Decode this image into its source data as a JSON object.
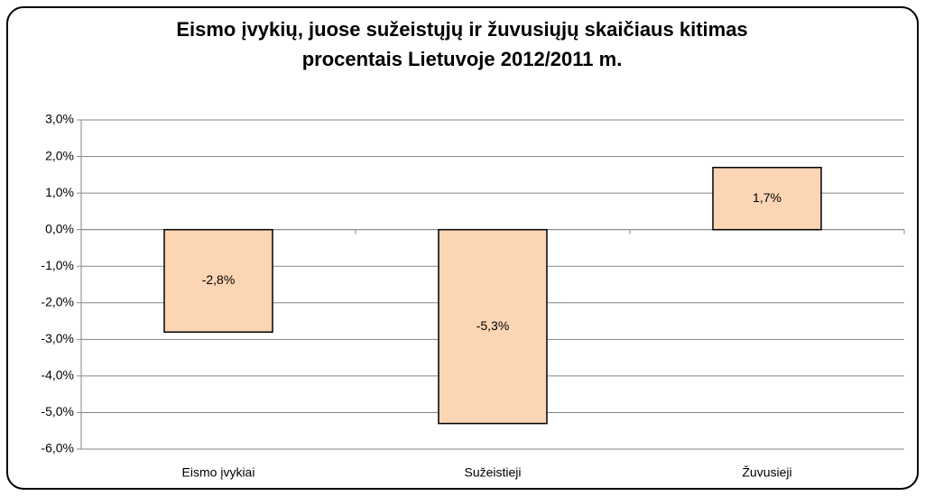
{
  "chart_data": {
    "type": "bar",
    "title": [
      "Eismo įvykių, juose sužeistųjų ir žuvusiųjų skaičiaus kitimas",
      "procentais Lietuvoje 2012/2011 m."
    ],
    "categories": [
      "Eismo įvykiai",
      "Sužeistieji",
      "Žuvusieji"
    ],
    "values": [
      -2.8,
      -5.3,
      1.7
    ],
    "value_labels": [
      "-2,8%",
      "-5,3%",
      "1,7%"
    ],
    "color": "#fcd5b5",
    "ylim": [
      -6,
      3
    ],
    "yticks": [
      {
        "value": -6,
        "label": "-6,0%"
      },
      {
        "value": -5,
        "label": "-5,0%"
      },
      {
        "value": -4,
        "label": "-4,0%"
      },
      {
        "value": -3,
        "label": "-3,0%"
      },
      {
        "value": -2,
        "label": "-2,0%"
      },
      {
        "value": -1,
        "label": "-1,0%"
      },
      {
        "value": 0,
        "label": "0,0%"
      },
      {
        "value": 1,
        "label": "1,0%"
      },
      {
        "value": 2,
        "label": "2,0%"
      },
      {
        "value": 3,
        "label": "3,0%"
      }
    ],
    "grid": true
  }
}
